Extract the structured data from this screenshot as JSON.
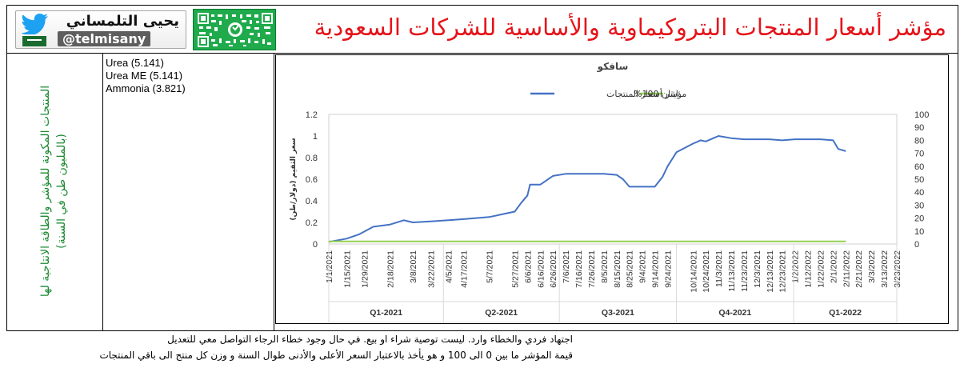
{
  "header": {
    "title": "مؤشر أسعار المنتجات البتروكيماوية والأساسية للشركات السعودية",
    "brand_name": "يحيى التلمساني",
    "brand_handle": "@telmisany"
  },
  "left_panel": {
    "vertical_text": "المنتجات المكونة للمؤشر والطاقة الانتاجية لها (بالمليون طن في السنة)"
  },
  "products": [
    "Urea (5.141)",
    "Urea ME (5.141)",
    "Ammonia (3.821)"
  ],
  "footer": {
    "line1": "اجتهاد فردي والخطاء وارد. ليست توصية شراء او بيع. في حال وجود خطاء الرجاء التواصل معي للتعديل",
    "line2": "قيمة المؤشر ما بين 0 الى 100 و هو يأخذ بالاعتبار السعر الأعلى والأدنى طوال السنة و وزن كل منتج الى باقي المنتجات"
  },
  "colors": {
    "title": "#e5141a",
    "index_line": "#4472c4",
    "yanbu_line": "#92d050",
    "vertical_text": "#1e8a33",
    "qr_background": "#1faa4b"
  },
  "icons": {
    "bird": "twitter-bird-icon",
    "flag": "saudi-flag-icon",
    "qr": "qr-code-icon"
  },
  "chart_data": {
    "type": "line",
    "title": "سافكو",
    "ylabel_left": "",
    "ylabel_right": "سعر الثقيم (دولار/طن)",
    "ylim_left": [
      0,
      1.2
    ],
    "yticks_left": [
      "0",
      "0.2",
      "0.4",
      "0.6",
      "0.8",
      "1",
      "1.2"
    ],
    "ylim_right": [
      0,
      100
    ],
    "yticks_right": [
      "0",
      "10",
      "20",
      "30",
      "40",
      "50",
      "60",
      "70",
      "80",
      "90",
      "100"
    ],
    "x_start": "1/1/2021",
    "x_end": "3/23/2022",
    "x_tick_labels": [
      "1/1/2021",
      "1/15/2021",
      "1/29/2021",
      "2/18/2021",
      "3/8/2021",
      "3/22/2021",
      "4/5/2021",
      "4/17/2021",
      "5/7/2021",
      "5/27/2021",
      "6/6/2021",
      "6/16/2021",
      "6/26/2021",
      "7/6/2021",
      "7/16/2021",
      "7/26/2021",
      "8/5/2021",
      "8/15/2021",
      "8/25/2021",
      "9/4/2021",
      "9/14/2021",
      "9/24/2021",
      "10/14/2021",
      "10/24/2021",
      "11/3/2021",
      "11/13/2021",
      "11/23/2021",
      "12/3/2021",
      "12/13/2021",
      "12/23/2021",
      "1/2/2022",
      "1/12/2022",
      "1/22/2022",
      "2/1/2022",
      "2/11/2022",
      "2/21/2022",
      "3/3/2022",
      "3/13/2022",
      "3/23/2022"
    ],
    "quarters": [
      "Q1-2021",
      "Q2-2021",
      "Q3-2021",
      "Q4-2021",
      "Q1-2022"
    ],
    "legend_position": "top",
    "grid": false,
    "series": [
      {
        "name": "مؤشر أسعار المنتجات",
        "axis": "left",
        "x": [
          "1/1/2021",
          "1/15/2021",
          "1/25/2021",
          "2/5/2021",
          "2/18/2021",
          "3/1/2021",
          "3/8/2021",
          "3/22/2021",
          "4/5/2021",
          "4/17/2021",
          "5/7/2021",
          "5/27/2021",
          "6/1/2021",
          "6/6/2021",
          "6/8/2021",
          "6/16/2021",
          "6/26/2021",
          "7/6/2021",
          "7/16/2021",
          "7/26/2021",
          "8/5/2021",
          "8/15/2021",
          "8/20/2021",
          "8/25/2021",
          "9/4/2021",
          "9/14/2021",
          "9/20/2021",
          "9/24/2021",
          "10/1/2021",
          "10/14/2021",
          "10/20/2021",
          "10/24/2021",
          "11/3/2021",
          "11/13/2021",
          "11/23/2021",
          "12/3/2021",
          "12/13/2021",
          "12/23/2021",
          "1/2/2022",
          "1/12/2022",
          "1/22/2022",
          "2/1/2022",
          "2/5/2022",
          "2/11/2022"
        ],
        "values": [
          0.02,
          0.05,
          0.09,
          0.16,
          0.18,
          0.22,
          0.2,
          0.21,
          0.22,
          0.23,
          0.25,
          0.3,
          0.38,
          0.45,
          0.55,
          0.55,
          0.63,
          0.65,
          0.65,
          0.65,
          0.65,
          0.64,
          0.6,
          0.53,
          0.53,
          0.53,
          0.62,
          0.72,
          0.85,
          0.93,
          0.96,
          0.95,
          1.0,
          0.98,
          0.97,
          0.97,
          0.97,
          0.96,
          0.97,
          0.97,
          0.97,
          0.96,
          0.88,
          0.86
        ]
      },
      {
        "name": "ايثان 100%",
        "axis": "right",
        "x": [
          "1/1/2021",
          "2/11/2022"
        ],
        "values": [
          2,
          2
        ]
      }
    ]
  }
}
